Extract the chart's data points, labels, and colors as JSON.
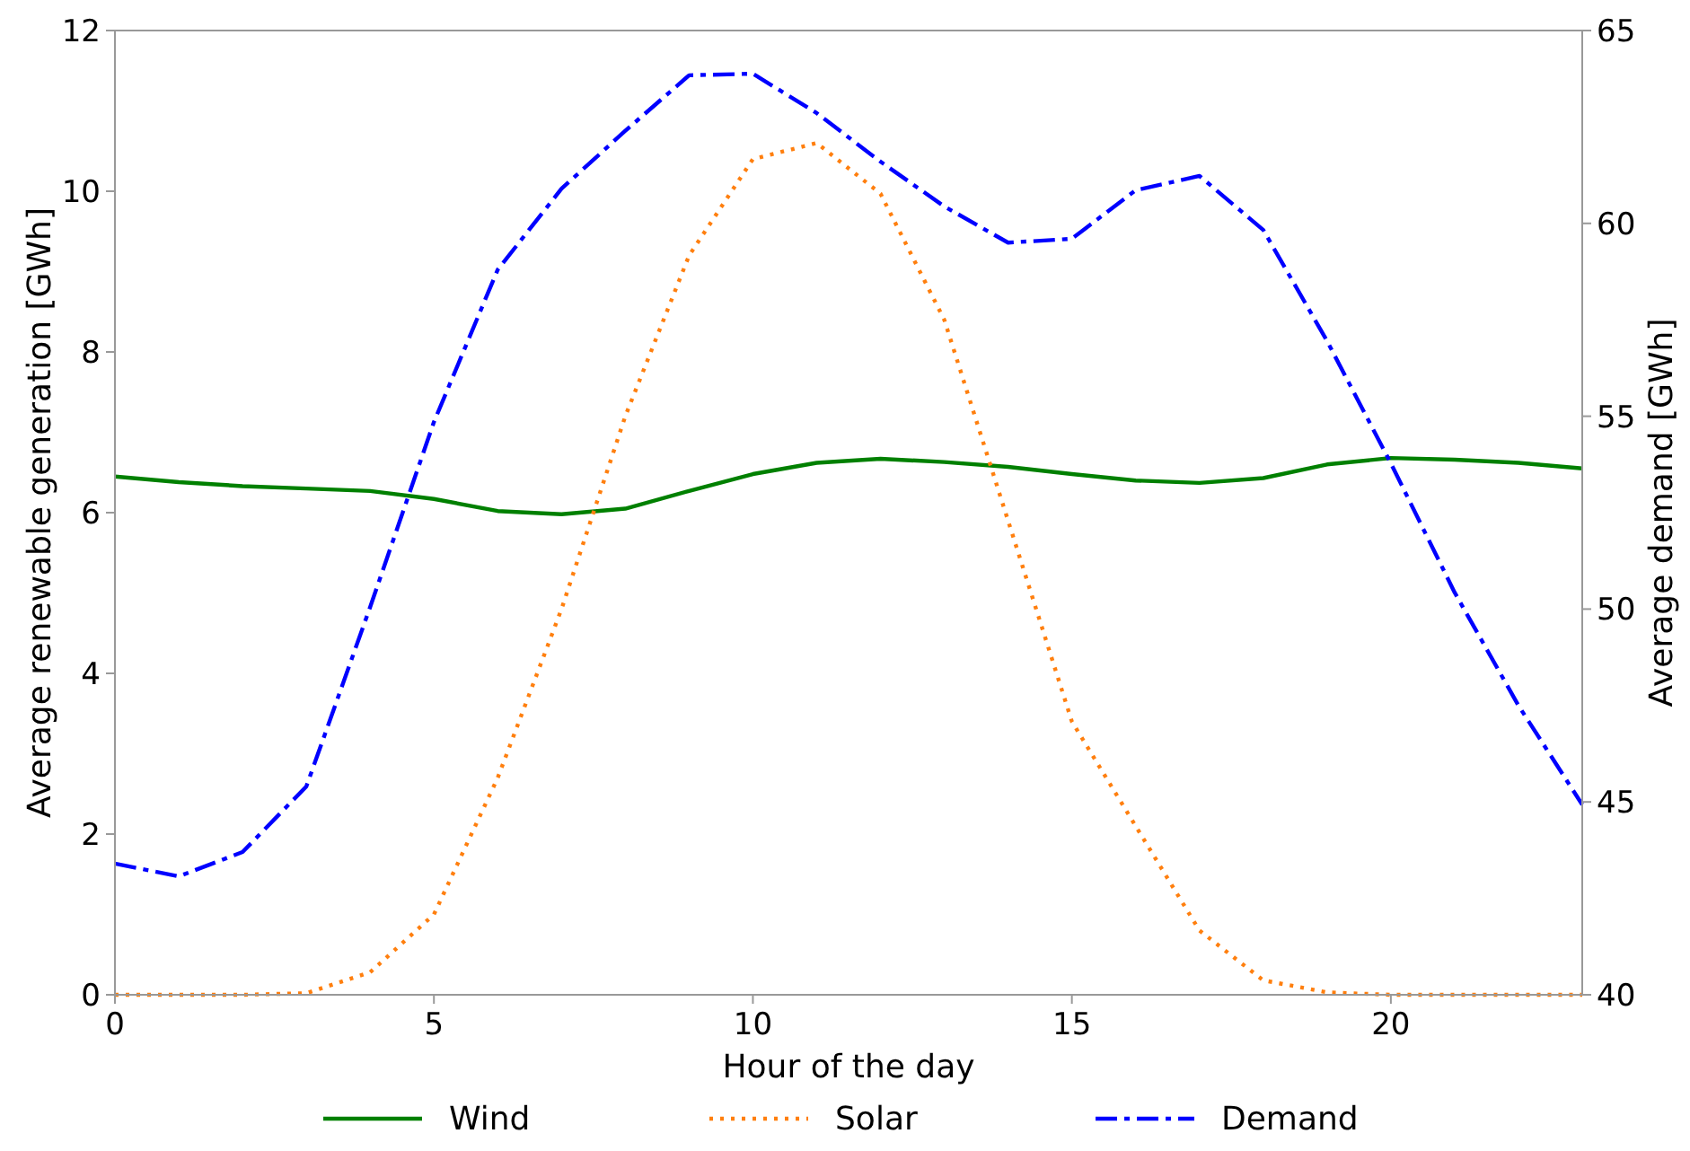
{
  "chart_data": {
    "type": "line",
    "xlabel": "Hour of the day",
    "ylabel": "Average renewable generation [GWh]",
    "y2label": "Average demand [GWh]",
    "x": [
      0,
      1,
      2,
      3,
      4,
      5,
      6,
      7,
      8,
      9,
      10,
      11,
      12,
      13,
      14,
      15,
      16,
      17,
      18,
      19,
      20,
      21,
      22,
      23
    ],
    "series": [
      {
        "name": "Wind",
        "color": "#008000",
        "line_style": "solid",
        "values": [
          6.45,
          6.38,
          6.33,
          6.3,
          6.27,
          6.17,
          6.02,
          5.98,
          6.05,
          6.27,
          6.48,
          6.62,
          6.67,
          6.63,
          6.57,
          6.48,
          6.4,
          6.37,
          6.43,
          6.6,
          6.68,
          6.66,
          6.62,
          6.55
        ]
      },
      {
        "name": "Solar",
        "color": "#ff7f0e",
        "line_style": "dotted",
        "values": [
          0,
          0,
          0,
          0.02,
          0.28,
          1.0,
          2.7,
          4.8,
          7.2,
          9.2,
          10.4,
          10.6,
          9.97,
          8.4,
          5.9,
          3.4,
          2.1,
          0.8,
          0.18,
          0.03,
          0,
          0,
          0,
          0
        ]
      },
      {
        "name": "Demand",
        "color": "#0000ff",
        "line_style": "dashdot",
        "axis": "y2",
        "values": [
          43.4,
          43.07,
          43.7,
          45.4,
          50.05,
          54.85,
          58.8,
          60.9,
          62.4,
          63.84,
          63.88,
          62.86,
          61.6,
          60.44,
          59.5,
          59.6,
          60.86,
          61.23,
          59.83,
          56.95,
          53.78,
          50.43,
          47.5,
          44.93
        ]
      }
    ],
    "xlim": [
      0,
      23
    ],
    "xticks": [
      0,
      5,
      10,
      15,
      20
    ],
    "ylim": [
      0,
      12
    ],
    "yticks": [
      0,
      2,
      4,
      6,
      8,
      10,
      12
    ],
    "y2lim": [
      40,
      65
    ],
    "y2ticks": [
      40,
      45,
      50,
      55,
      60,
      65
    ],
    "grid": false,
    "legend": "bottom",
    "marker": "none"
  }
}
